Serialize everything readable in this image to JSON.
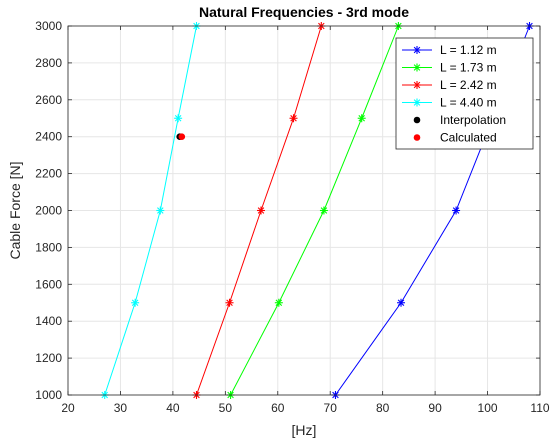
{
  "chart_data": {
    "type": "line",
    "title": "Natural Frequencies - 3rd mode",
    "xlabel": "[Hz]",
    "ylabel": "Cable Force [N]",
    "xlim": [
      20,
      110
    ],
    "ylim": [
      1000,
      3000
    ],
    "xticks": [
      20,
      30,
      40,
      50,
      60,
      70,
      80,
      90,
      100,
      110
    ],
    "yticks": [
      1000,
      1200,
      1400,
      1600,
      1800,
      2000,
      2200,
      2400,
      2600,
      2800,
      3000
    ],
    "grid": true,
    "legend_position": "top-right",
    "series": [
      {
        "name": "L = 1.12 m",
        "color": "#0000ff",
        "marker": "asterisk",
        "x": [
          71.0,
          83.5,
          94.0,
          108.0
        ],
        "y": [
          1000,
          1500,
          2000,
          3000
        ]
      },
      {
        "name": "L = 1.73 m",
        "color": "#00ff00",
        "marker": "asterisk",
        "x": [
          51.0,
          60.2,
          68.8,
          76.0,
          83.0
        ],
        "y": [
          1000,
          1500,
          2000,
          2500,
          3000
        ]
      },
      {
        "name": "L = 2.42 m",
        "color": "#ff0000",
        "marker": "asterisk",
        "x": [
          44.5,
          50.8,
          56.8,
          63.0,
          68.3
        ],
        "y": [
          1000,
          1500,
          2000,
          2500,
          3000
        ]
      },
      {
        "name": "L = 4.40 m",
        "color": "#00ffff",
        "marker": "asterisk",
        "x": [
          27.0,
          32.8,
          37.6,
          41.0,
          44.5
        ],
        "y": [
          1000,
          1500,
          2000,
          2500,
          3000
        ]
      },
      {
        "name": "Interpolation",
        "color": "#000000",
        "marker": "dot",
        "x": [
          41.3
        ],
        "y": [
          2400
        ]
      },
      {
        "name": "Calculated",
        "color": "#ff0000",
        "marker": "dot",
        "x": [
          41.7
        ],
        "y": [
          2400
        ]
      }
    ]
  }
}
